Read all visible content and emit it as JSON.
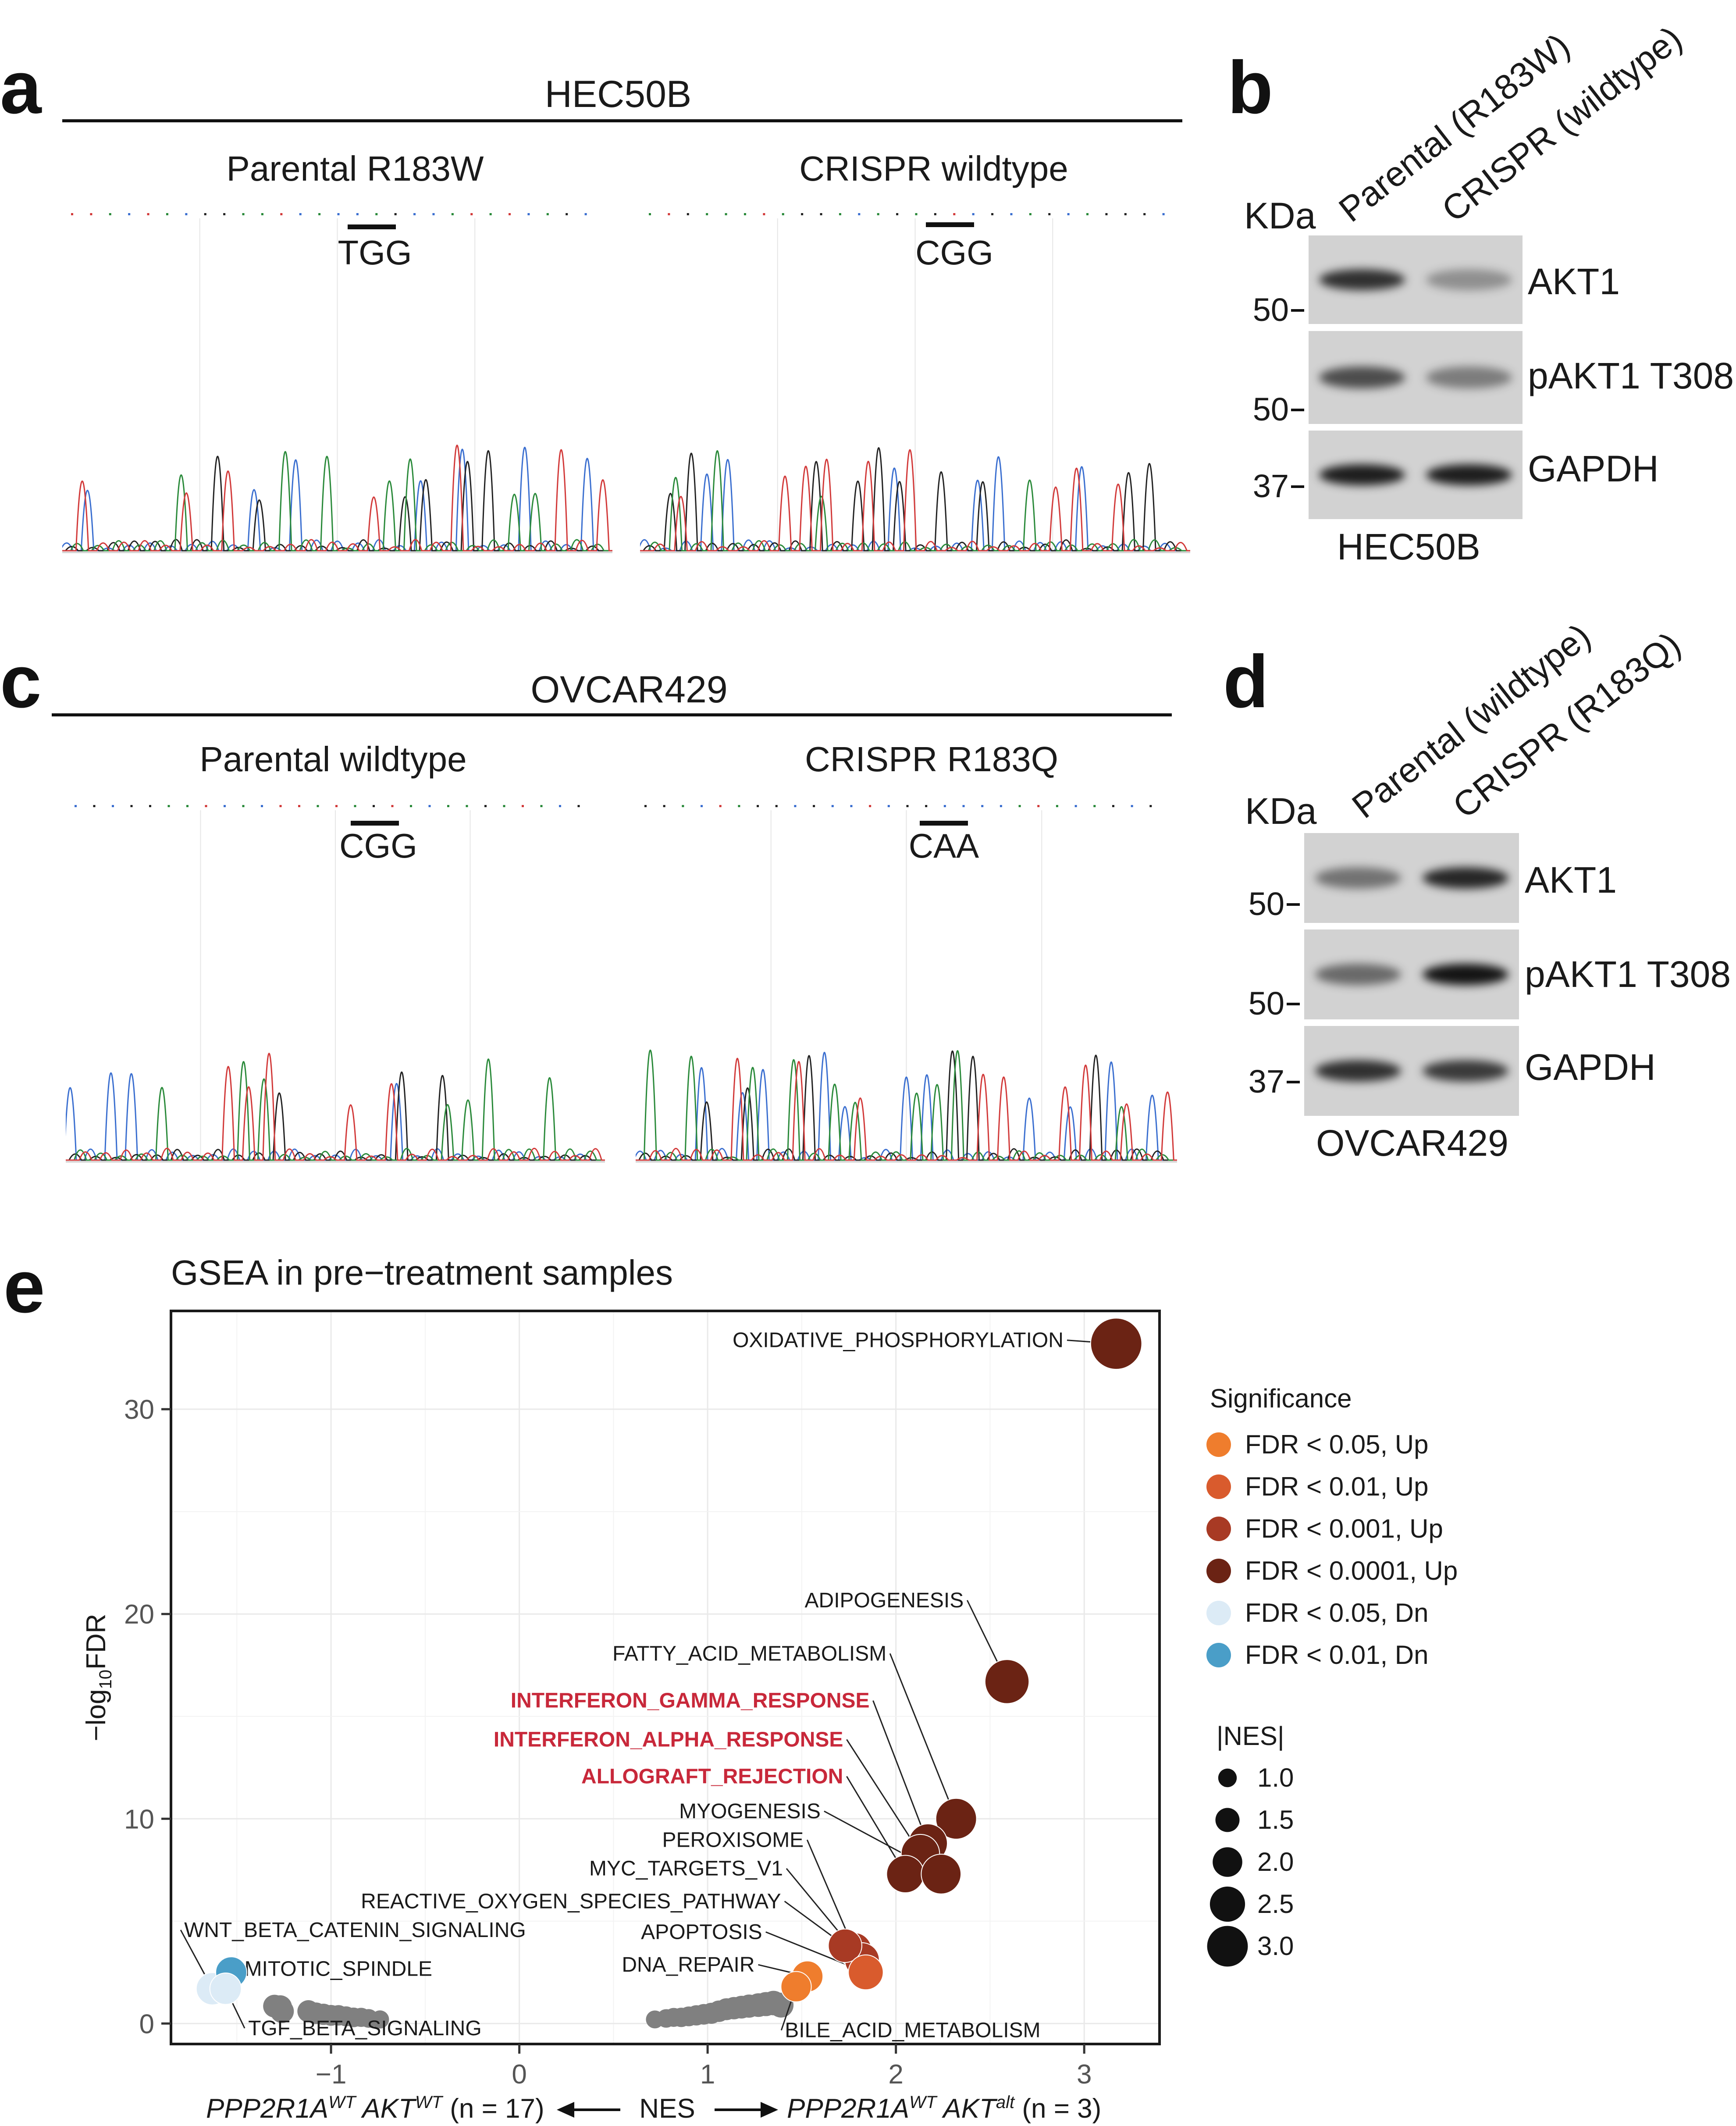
{
  "panels": {
    "a": {
      "letter": "a",
      "cell_line": "HEC50B",
      "left_title": "Parental R183W",
      "right_title": "CRISPR wildtype",
      "left_codon": "TGG",
      "right_codon": "CGG"
    },
    "b": {
      "letter": "b",
      "kda_label": "KDa",
      "lane1": "Parental (R183W)",
      "lane2": "CRISPR (wildtype)",
      "bands": [
        "AKT1",
        "pAKT1 T308",
        "GAPDH"
      ],
      "markers": [
        "50",
        "50",
        "37"
      ],
      "cell_line": "HEC50B",
      "intensity": {
        "akt1": [
          0.85,
          0.35
        ],
        "pakt1": [
          0.7,
          0.45
        ],
        "gapdh": [
          0.95,
          0.95
        ]
      }
    },
    "c": {
      "letter": "c",
      "cell_line": "OVCAR429",
      "left_title": "Parental wildtype",
      "right_title": "CRISPR R183Q",
      "left_codon": "CGG",
      "right_codon": "CAA"
    },
    "d": {
      "letter": "d",
      "kda_label": "KDa",
      "lane1": "Parental (wildtype)",
      "lane2": "CRISPR (R183Q)",
      "bands": [
        "AKT1",
        "pAKT1 T308",
        "GAPDH"
      ],
      "markers": [
        "50",
        "50",
        "37"
      ],
      "cell_line": "OVCAR429",
      "intensity": {
        "akt1": [
          0.5,
          0.9
        ],
        "pakt1": [
          0.55,
          1.0
        ],
        "gapdh": [
          0.85,
          0.8
        ]
      }
    },
    "e": {
      "letter": "e"
    }
  },
  "chart_data": {
    "type": "scatter",
    "title": "GSEA in pre−treatment samples",
    "ylabel": "−log",
    "ylabel_sub": "10",
    "ylabel_tail": "FDR",
    "xlim": [
      -1.85,
      3.4
    ],
    "ylim": [
      -1.0,
      34.8
    ],
    "xticks": [
      -1,
      0,
      1,
      2,
      3
    ],
    "xtick_labels": [
      "−1",
      "0",
      "1",
      "2",
      "3"
    ],
    "yticks": [
      0,
      10,
      20,
      30
    ],
    "xaxis": {
      "left_gene1": "PPP2R1A",
      "left_sup1": "WT",
      "left_gene2": " AKT",
      "left_sup2": "WT",
      "left_n": " (n = 17)",
      "center": "NES",
      "right_gene1": "PPP2R1A",
      "right_sup1": "WT",
      "right_gene2": " AKT",
      "right_sup2": "alt",
      "right_n": " (n = 3)"
    },
    "legend": {
      "significance_title": "Significance",
      "categories": [
        {
          "label": "FDR < 0.05, Up",
          "color": "#ef7d2d"
        },
        {
          "label": "FDR < 0.01, Up",
          "color": "#d95b2d"
        },
        {
          "label": "FDR < 0.001, Up",
          "color": "#a83a24"
        },
        {
          "label": "FDR < 0.0001, Up",
          "color": "#6b2314"
        },
        {
          "label": "FDR < 0.05, Dn",
          "color": "#dcebf6"
        },
        {
          "label": "FDR < 0.01, Dn",
          "color": "#4a9ec8"
        }
      ],
      "size_title": "|NES|",
      "sizes": [
        {
          "label": "1.0",
          "nes": 1.0
        },
        {
          "label": "1.5",
          "nes": 1.5
        },
        {
          "label": "2.0",
          "nes": 2.0
        },
        {
          "label": "2.5",
          "nes": 2.5
        },
        {
          "label": "3.0",
          "nes": 3.0
        }
      ]
    },
    "points": [
      {
        "name": "OXIDATIVE_PHOSPHORYLATION",
        "nes": 3.17,
        "y": 33.2,
        "cat": 3,
        "label": "OXIDATIVE_PHOSPHORYLATION",
        "lx": 2.89,
        "ly": 33.2,
        "anchor": "end",
        "highlight": false
      },
      {
        "name": "ADIPOGENESIS",
        "nes": 2.59,
        "y": 16.7,
        "cat": 3,
        "label": "ADIPOGENESIS",
        "lx": 2.36,
        "ly": 20.5,
        "anchor": "end",
        "highlight": false
      },
      {
        "name": "FATTY_ACID_METABOLISM",
        "nes": 2.32,
        "y": 10.0,
        "cat": 3,
        "label": "FATTY_ACID_METABOLISM",
        "lx": 1.95,
        "ly": 17.9,
        "anchor": "end",
        "highlight": false
      },
      {
        "name": "INTERFERON_GAMMA_RESPONSE",
        "nes": 2.17,
        "y": 8.8,
        "cat": 3,
        "label": "INTERFERON_GAMMA_RESPONSE",
        "lx": 1.86,
        "ly": 15.6,
        "anchor": "end",
        "highlight": true
      },
      {
        "name": "INTERFERON_ALPHA_RESPONSE",
        "nes": 2.13,
        "y": 8.3,
        "cat": 3,
        "label": "INTERFERON_ALPHA_RESPONSE",
        "lx": 1.72,
        "ly": 13.7,
        "anchor": "end",
        "highlight": true
      },
      {
        "name": "ALLOGRAFT_REJECTION",
        "nes": 2.05,
        "y": 7.3,
        "cat": 3,
        "label": "ALLOGRAFT_REJECTION",
        "lx": 1.72,
        "ly": 11.9,
        "anchor": "end",
        "highlight": true
      },
      {
        "name": "MYOGENESIS",
        "nes": 2.24,
        "y": 7.3,
        "cat": 3,
        "label": "MYOGENESIS",
        "lx": 1.6,
        "ly": 10.2,
        "anchor": "end",
        "highlight": false
      },
      {
        "name": "PEROXISOME",
        "nes": 1.78,
        "y": 3.6,
        "cat": 2,
        "label": "PEROXISOME",
        "lx": 1.51,
        "ly": 8.8,
        "anchor": "end",
        "highlight": false
      },
      {
        "name": "MYC_TARGETS_V1",
        "nes": 1.82,
        "y": 3.1,
        "cat": 2,
        "label": "MYC_TARGETS_V1",
        "lx": 1.4,
        "ly": 7.4,
        "anchor": "end",
        "highlight": false
      },
      {
        "name": "REACTIVE_OXYGEN_SPECIES_PATHWAY",
        "nes": 1.73,
        "y": 3.8,
        "cat": 2,
        "label": "REACTIVE_OXYGEN_SPECIES_PATHWAY",
        "lx": 1.39,
        "ly": 5.8,
        "anchor": "end",
        "highlight": false
      },
      {
        "name": "APOPTOSIS",
        "nes": 1.84,
        "y": 2.5,
        "cat": 1,
        "label": "APOPTOSIS",
        "lx": 1.29,
        "ly": 4.3,
        "anchor": "end",
        "highlight": false
      },
      {
        "name": "DNA_REPAIR",
        "nes": 1.53,
        "y": 2.3,
        "cat": 0,
        "label": "DNA_REPAIR",
        "lx": 1.25,
        "ly": 2.7,
        "anchor": "end",
        "highlight": false
      },
      {
        "name": "BILE_ACID_METABOLISM",
        "nes": 1.47,
        "y": 1.8,
        "cat": 0,
        "label": "BILE_ACID_METABOLISM",
        "lx": 1.41,
        "ly": -0.5,
        "anchor": "start",
        "highlight": false
      },
      {
        "name": "WNT_BETA_CATENIN_SIGNALING",
        "nes": -1.63,
        "y": 1.7,
        "cat": 4,
        "label": "WNT_BETA_CATENIN_SIGNALING",
        "lx": -1.78,
        "ly": 4.4,
        "anchor": "start",
        "highlight": false
      },
      {
        "name": "MITOTIC_SPINDLE",
        "nes": -1.53,
        "y": 2.5,
        "cat": 5,
        "label": "MITOTIC_SPINDLE",
        "lx": -1.46,
        "ly": 2.5,
        "anchor": "start",
        "highlight": false
      },
      {
        "name": "TGF_BETA_SIGNALING",
        "nes": -1.56,
        "y": 1.7,
        "cat": 4,
        "label": "TGF_BETA_SIGNALING",
        "lx": -1.44,
        "ly": -0.4,
        "anchor": "start",
        "highlight": false
      }
    ],
    "nonsig_points": [
      {
        "nes": -1.27,
        "y": 0.8
      },
      {
        "nes": -1.26,
        "y": 0.6
      },
      {
        "nes": -1.12,
        "y": 0.6
      },
      {
        "nes": -1.08,
        "y": 0.5
      },
      {
        "nes": -1.04,
        "y": 0.45
      },
      {
        "nes": -1.0,
        "y": 0.4
      },
      {
        "nes": -0.96,
        "y": 0.4
      },
      {
        "nes": -0.92,
        "y": 0.35
      },
      {
        "nes": -0.88,
        "y": 0.3
      },
      {
        "nes": -0.84,
        "y": 0.3
      },
      {
        "nes": -0.8,
        "y": 0.25
      },
      {
        "nes": -0.74,
        "y": 0.2
      },
      {
        "nes": 0.72,
        "y": 0.2
      },
      {
        "nes": 0.78,
        "y": 0.25
      },
      {
        "nes": 0.82,
        "y": 0.3
      },
      {
        "nes": 0.86,
        "y": 0.3
      },
      {
        "nes": 0.9,
        "y": 0.35
      },
      {
        "nes": 0.94,
        "y": 0.4
      },
      {
        "nes": 0.98,
        "y": 0.45
      },
      {
        "nes": 1.02,
        "y": 0.5
      },
      {
        "nes": 1.06,
        "y": 0.6
      },
      {
        "nes": 1.1,
        "y": 0.7
      },
      {
        "nes": 1.14,
        "y": 0.75
      },
      {
        "nes": 1.18,
        "y": 0.8
      },
      {
        "nes": 1.22,
        "y": 0.85
      },
      {
        "nes": 1.27,
        "y": 0.9
      },
      {
        "nes": 1.31,
        "y": 0.95
      },
      {
        "nes": 1.35,
        "y": 1.0
      },
      {
        "nes": 1.39,
        "y": 0.9
      }
    ]
  }
}
